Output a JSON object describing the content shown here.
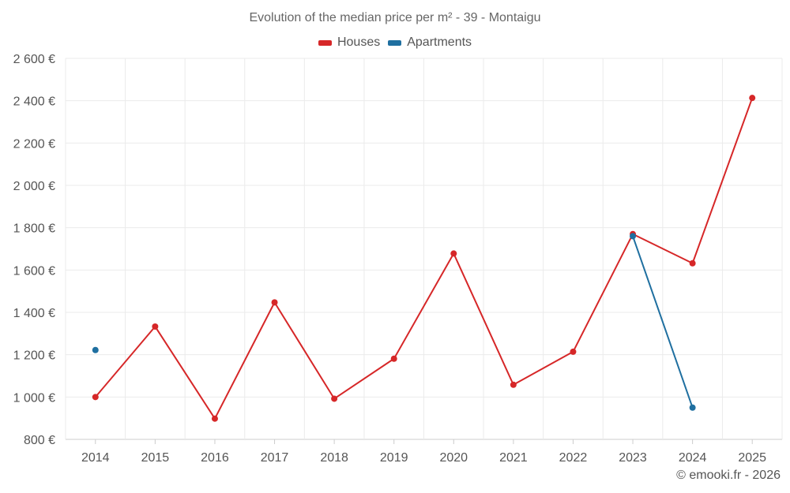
{
  "chart_data": {
    "type": "line",
    "title": "Evolution of the median price per m² - 39 - Montaigu",
    "xlabel": "",
    "ylabel": "",
    "categories": [
      "2014",
      "2015",
      "2016",
      "2017",
      "2018",
      "2019",
      "2020",
      "2021",
      "2022",
      "2023",
      "2024",
      "2025"
    ],
    "ylim": [
      800,
      2600
    ],
    "yticks": [
      800,
      1000,
      1200,
      1400,
      1600,
      1800,
      2000,
      2200,
      2400,
      2600
    ],
    "ytick_labels": [
      "800 €",
      "1 000 €",
      "1 200 €",
      "1 400 €",
      "1 600 €",
      "1 800 €",
      "2 000 €",
      "2 200 €",
      "2 400 €",
      "2 600 €"
    ],
    "grid": true,
    "legend_position": "top-center",
    "series": [
      {
        "name": "Houses",
        "color": "#d62728",
        "values": [
          1000,
          1333,
          898,
          1447,
          992,
          1181,
          1678,
          1058,
          1214,
          1770,
          1632,
          2413
        ]
      },
      {
        "name": "Apartments",
        "color": "#1f6fa0",
        "values": [
          1222,
          null,
          null,
          null,
          null,
          null,
          null,
          null,
          null,
          1760,
          950,
          null
        ]
      }
    ]
  },
  "credit": "© emooki.fr - 2026"
}
